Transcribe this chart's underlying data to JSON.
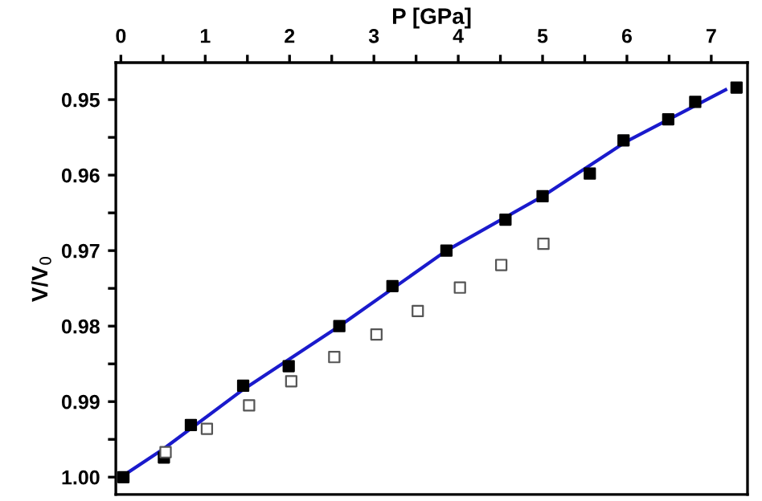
{
  "chart_data": {
    "type": "scatter",
    "xlabel": "P [GPa]",
    "ylabel": "V/V$_{0}$",
    "xlim": [
      -0.06,
      7.43
    ],
    "ylim": [
      1.0023,
      0.9451
    ],
    "xticks": [
      0,
      {
        "value": 0.5,
        "label": null
      },
      1,
      {
        "value": 1.5,
        "label": null
      },
      2,
      {
        "value": 2.5,
        "label": null
      },
      3,
      {
        "value": 3.5,
        "label": null
      },
      4,
      {
        "value": 4.5,
        "label": null
      },
      5,
      {
        "value": 5.5,
        "label": null
      },
      6,
      {
        "value": 6.5,
        "label": null
      },
      7
    ],
    "yticks": [
      {
        "value": 0.95,
        "label": "0.95"
      },
      {
        "value": 0.955,
        "label": null
      },
      {
        "value": 0.96,
        "label": "0.96"
      },
      {
        "value": 0.965,
        "label": null
      },
      {
        "value": 0.97,
        "label": "0.97"
      },
      {
        "value": 0.975,
        "label": null
      },
      {
        "value": 0.98,
        "label": "0.98"
      },
      {
        "value": 0.985,
        "label": null
      },
      {
        "value": 0.99,
        "label": "0.99"
      },
      {
        "value": 0.995,
        "label": null
      },
      {
        "value": 1.0,
        "label": "1.00"
      }
    ],
    "grid": false,
    "legend": false,
    "marker": "square",
    "series": [
      {
        "type": "line",
        "color": "#1a1acc",
        "marker": "none",
        "line_style": "solid",
        "x": [
          0,
          0.5,
          1.45,
          2.59,
          3.86,
          5,
          6,
          7.17
        ],
        "values": [
          1.0,
          0.9963,
          0.9884,
          0.98,
          0.97,
          0.9628,
          0.9555,
          0.9487
        ]
      },
      {
        "color": "#000000",
        "x": [
          0.03,
          0.51,
          0.83,
          1.45,
          1.99,
          2.59,
          3.22,
          3.86,
          4.56,
          5.0,
          5.56,
          5.96,
          6.49,
          6.81,
          7.3
        ],
        "values": [
          1.0,
          0.9974,
          0.9931,
          0.9879,
          0.9853,
          0.98,
          0.9747,
          0.97,
          0.9659,
          0.9628,
          0.9598,
          0.9554,
          0.9526,
          0.9503,
          0.9484
        ]
      },
      {
        "color": "#555555",
        "x": [
          0.53,
          1.02,
          1.52,
          2.02,
          2.53,
          3.03,
          3.52,
          4.02,
          4.51,
          5.01
        ],
        "values": [
          0.9967,
          0.9936,
          0.9905,
          0.9873,
          0.9841,
          0.9811,
          0.978,
          0.9749,
          0.9719,
          0.9691
        ]
      }
    ]
  }
}
